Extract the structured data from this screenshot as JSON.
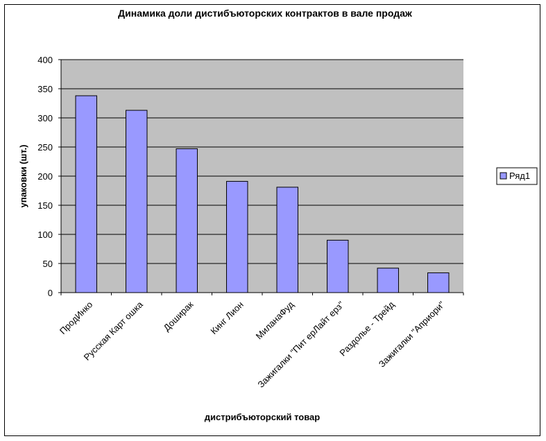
{
  "chart_data": {
    "type": "bar",
    "title": "Динамика доли дистибъюторских контрактов в вале продаж",
    "xlabel": "дистрибъюторский товар",
    "ylabel": "упаковки (шт.)",
    "categories": [
      "ПродИнко",
      "Русская Карт ошка",
      "Доширак",
      "Кинг Лион",
      "МиланаФуд",
      "Зажигалки \"Пит ерЛайт ерз\"",
      "Раздолье - Трейд",
      "Зажигалки \"Априори\""
    ],
    "series": [
      {
        "name": "Ряд1",
        "values": [
          338,
          313,
          247,
          191,
          181,
          90,
          42,
          34
        ]
      }
    ],
    "ylim": [
      0,
      400
    ],
    "yticks": [
      0,
      50,
      100,
      150,
      200,
      250,
      300,
      350,
      400
    ],
    "grid": true,
    "legend": "right",
    "colors": {
      "plot_bg": "#c0c0c0",
      "bar": "#9999ff",
      "bar_stroke": "#000000",
      "grid": "#000000"
    }
  }
}
